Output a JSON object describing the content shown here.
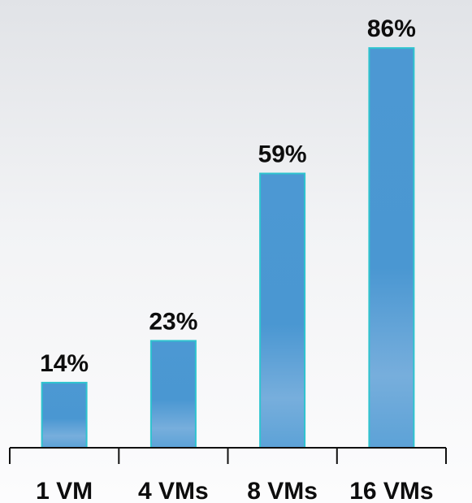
{
  "chart_data": {
    "type": "bar",
    "title": "",
    "xlabel": "",
    "ylabel": "",
    "categories": [
      "1 VM",
      "4 VMs",
      "8 VMs",
      "16 VMs"
    ],
    "values": [
      14,
      23,
      59,
      86
    ],
    "data_labels": [
      "14%",
      "23%",
      "59%",
      "86%"
    ],
    "ylim": [
      0,
      100
    ],
    "grid": false,
    "legend": "none",
    "colors": {
      "bar_fill": "#4e9bd4",
      "bar_highlight": "#7fb2de",
      "bar_edge": "#2ec4cf",
      "axis": "#111111",
      "text": "#0d0d0d"
    }
  }
}
